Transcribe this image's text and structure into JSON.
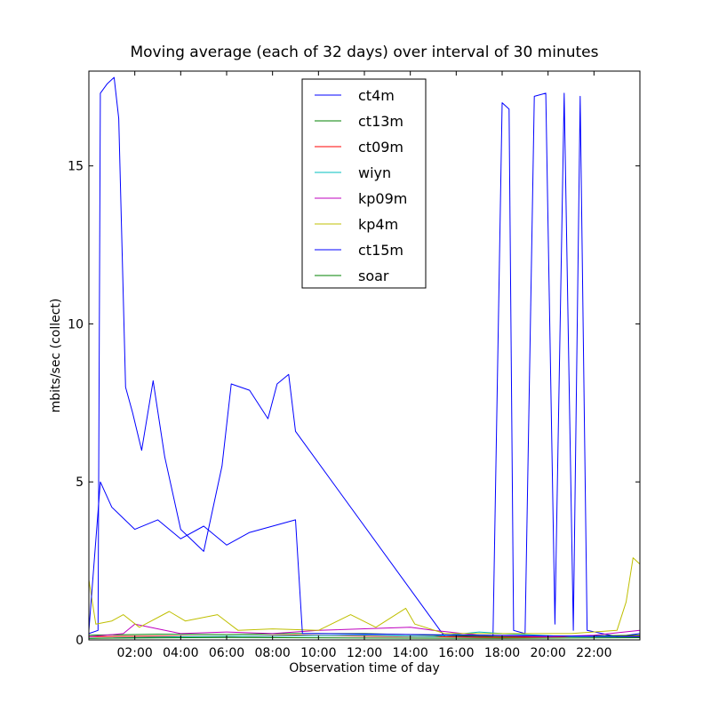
{
  "chart_data": {
    "type": "line",
    "title": "Moving average (each of 32 days) over interval of 30 minutes",
    "xlabel": "Observation time of day",
    "ylabel": "mbits/sec (collect)",
    "xlim": [
      0,
      24
    ],
    "ylim": [
      0,
      18
    ],
    "x_ticks": [
      {
        "value": 2,
        "label": "02:00"
      },
      {
        "value": 4,
        "label": "04:00"
      },
      {
        "value": 6,
        "label": "06:00"
      },
      {
        "value": 8,
        "label": "08:00"
      },
      {
        "value": 10,
        "label": "10:00"
      },
      {
        "value": 12,
        "label": "12:00"
      },
      {
        "value": 14,
        "label": "14:00"
      },
      {
        "value": 16,
        "label": "16:00"
      },
      {
        "value": 18,
        "label": "18:00"
      },
      {
        "value": 20,
        "label": "20:00"
      },
      {
        "value": 22,
        "label": "22:00"
      }
    ],
    "y_ticks": [
      {
        "value": 0,
        "label": "0"
      },
      {
        "value": 5,
        "label": "5"
      },
      {
        "value": 10,
        "label": "10"
      },
      {
        "value": 15,
        "label": "15"
      }
    ],
    "grid": false,
    "legend_position": "top-center",
    "series": [
      {
        "name": "ct4m",
        "color": "#0000ff",
        "points": [
          [
            0,
            0.2
          ],
          [
            0.4,
            0.3
          ],
          [
            0.5,
            17.3
          ],
          [
            0.8,
            17.6
          ],
          [
            1.1,
            17.8
          ],
          [
            1.3,
            16.5
          ],
          [
            1.6,
            8.0
          ],
          [
            1.9,
            7.2
          ],
          [
            2.3,
            6.0
          ],
          [
            2.8,
            8.2
          ],
          [
            3.3,
            5.8
          ],
          [
            4.0,
            3.5
          ],
          [
            5.0,
            2.8
          ],
          [
            5.8,
            5.5
          ],
          [
            6.2,
            8.1
          ],
          [
            7.0,
            7.9
          ],
          [
            7.8,
            7.0
          ],
          [
            8.2,
            8.1
          ],
          [
            8.7,
            8.4
          ],
          [
            9.0,
            6.6
          ],
          [
            15.5,
            0.1
          ],
          [
            17.6,
            0.1
          ],
          [
            18.0,
            17.0
          ],
          [
            18.3,
            16.8
          ],
          [
            18.5,
            0.3
          ],
          [
            19.0,
            0.2
          ],
          [
            19.4,
            17.2
          ],
          [
            19.9,
            17.3
          ],
          [
            20.3,
            0.5
          ],
          [
            20.7,
            17.3
          ],
          [
            21.1,
            0.3
          ],
          [
            21.4,
            17.2
          ],
          [
            21.7,
            0.3
          ],
          [
            23.0,
            0.1
          ],
          [
            24,
            0.2
          ]
        ]
      },
      {
        "name": "ct13m",
        "color": "#008000",
        "points": [
          [
            0,
            0.15
          ],
          [
            3,
            0.18
          ],
          [
            6,
            0.17
          ],
          [
            9,
            0.2
          ],
          [
            12,
            0.2
          ],
          [
            15,
            0.15
          ],
          [
            18,
            0.1
          ],
          [
            21,
            0.12
          ],
          [
            24,
            0.15
          ]
        ]
      },
      {
        "name": "ct09m",
        "color": "#ff0000",
        "points": [
          [
            0,
            0.1
          ],
          [
            3,
            0.12
          ],
          [
            6,
            0.1
          ],
          [
            9,
            0.15
          ],
          [
            12,
            0.12
          ],
          [
            15,
            0.1
          ],
          [
            18,
            0.08
          ],
          [
            21,
            0.1
          ],
          [
            24,
            0.12
          ]
        ]
      },
      {
        "name": "wiyn",
        "color": "#00bfbf",
        "points": [
          [
            0,
            0.05
          ],
          [
            4,
            0.1
          ],
          [
            8,
            0.12
          ],
          [
            12,
            0.15
          ],
          [
            15,
            0.1
          ],
          [
            17,
            0.25
          ],
          [
            18,
            0.2
          ],
          [
            21,
            0.1
          ],
          [
            24,
            0.1
          ]
        ]
      },
      {
        "name": "kp09m",
        "color": "#bf00bf",
        "points": [
          [
            0,
            0.1
          ],
          [
            1.5,
            0.2
          ],
          [
            2,
            0.5
          ],
          [
            4,
            0.2
          ],
          [
            6,
            0.25
          ],
          [
            8,
            0.2
          ],
          [
            10,
            0.3
          ],
          [
            14,
            0.4
          ],
          [
            15,
            0.3
          ],
          [
            17,
            0.15
          ],
          [
            20,
            0.1
          ],
          [
            22,
            0.15
          ],
          [
            24,
            0.3
          ]
        ]
      },
      {
        "name": "kp4m",
        "color": "#bfbf00",
        "points": [
          [
            0,
            1.9
          ],
          [
            0.3,
            0.5
          ],
          [
            1.0,
            0.6
          ],
          [
            1.5,
            0.8
          ],
          [
            2.2,
            0.4
          ],
          [
            3.5,
            0.9
          ],
          [
            4.2,
            0.6
          ],
          [
            5.6,
            0.8
          ],
          [
            6.5,
            0.3
          ],
          [
            8.0,
            0.35
          ],
          [
            10.0,
            0.3
          ],
          [
            11.4,
            0.8
          ],
          [
            12.5,
            0.4
          ],
          [
            13.8,
            1.0
          ],
          [
            14.2,
            0.5
          ],
          [
            15.5,
            0.2
          ],
          [
            18.0,
            0.2
          ],
          [
            21.0,
            0.2
          ],
          [
            23.0,
            0.3
          ],
          [
            23.4,
            1.2
          ],
          [
            23.7,
            2.6
          ],
          [
            24.0,
            2.4
          ]
        ]
      },
      {
        "name": "ct15m",
        "color": "#0000ff",
        "points": [
          [
            0,
            0.3
          ],
          [
            0.5,
            5.0
          ],
          [
            1.0,
            4.2
          ],
          [
            2.0,
            3.5
          ],
          [
            3.0,
            3.8
          ],
          [
            4.0,
            3.2
          ],
          [
            5.0,
            3.6
          ],
          [
            6.0,
            3.0
          ],
          [
            7.0,
            3.4
          ],
          [
            8.0,
            3.6
          ],
          [
            9.0,
            3.8
          ],
          [
            9.3,
            0.2
          ],
          [
            10,
            0.2
          ],
          [
            24,
            0.1
          ]
        ]
      },
      {
        "name": "soar",
        "color": "#008000",
        "points": [
          [
            0,
            0.05
          ],
          [
            6,
            0.08
          ],
          [
            12,
            0.06
          ],
          [
            18,
            0.05
          ],
          [
            24,
            0.07
          ]
        ]
      }
    ]
  }
}
